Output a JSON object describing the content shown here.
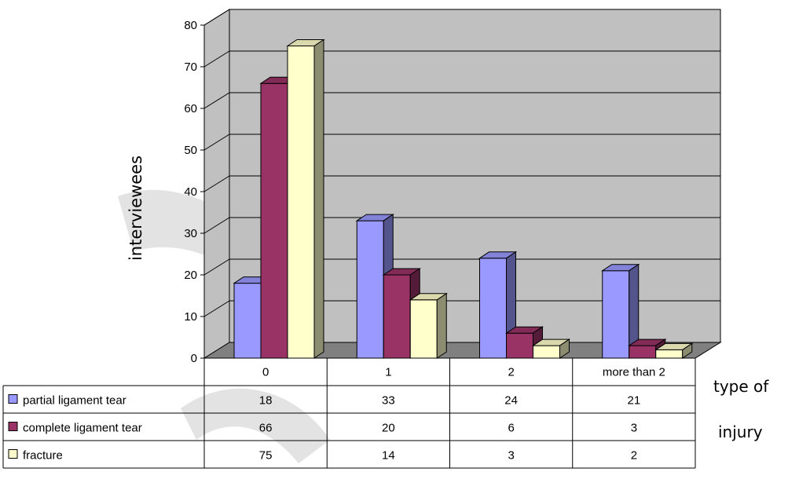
{
  "chart_data": {
    "type": "bar",
    "categories": [
      "0",
      "1",
      "2",
      "more than 2"
    ],
    "series": [
      {
        "name": "partial ligament tear",
        "values": [
          18,
          33,
          24,
          21
        ],
        "color": "#9999ff"
      },
      {
        "name": "complete ligament tear",
        "values": [
          66,
          20,
          6,
          3
        ],
        "color": "#993366"
      },
      {
        "name": "fracture",
        "values": [
          75,
          14,
          3,
          2
        ],
        "color": "#ffffcc"
      }
    ],
    "ylabel": "interviewees",
    "xlabel": [
      "type of",
      "injury"
    ],
    "ylim": [
      0,
      80
    ],
    "yticks": [
      0,
      10,
      20,
      30,
      40,
      50,
      60,
      70,
      80
    ],
    "grid": true,
    "legend": "data-table-left",
    "wall_color": "#c0c0c0",
    "floor_color": "#808080"
  }
}
